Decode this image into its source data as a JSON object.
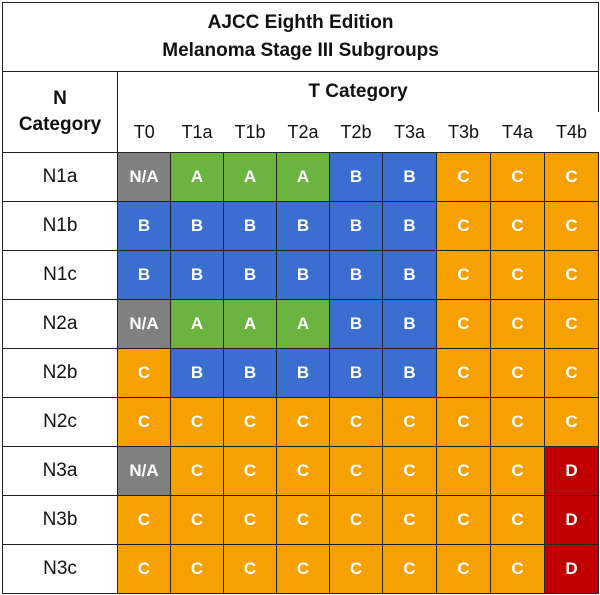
{
  "title": {
    "line1": "AJCC Eighth Edition",
    "line2": "Melanoma Stage III Subgroups"
  },
  "headers": {
    "n_category_line1": "N",
    "n_category_line2": "Category",
    "t_category": "T Category"
  },
  "t_columns": [
    "T0",
    "T1a",
    "T1b",
    "T2a",
    "T2b",
    "T3a",
    "T3b",
    "T4a",
    "T4b"
  ],
  "rows": [
    {
      "n": "N1a",
      "cells": [
        "N/A",
        "A",
        "A",
        "A",
        "B",
        "B",
        "C",
        "C",
        "C"
      ]
    },
    {
      "n": "N1b",
      "cells": [
        "B",
        "B",
        "B",
        "B",
        "B",
        "B",
        "C",
        "C",
        "C"
      ]
    },
    {
      "n": "N1c",
      "cells": [
        "B",
        "B",
        "B",
        "B",
        "B",
        "B",
        "C",
        "C",
        "C"
      ]
    },
    {
      "n": "N2a",
      "cells": [
        "N/A",
        "A",
        "A",
        "A",
        "B",
        "B",
        "C",
        "C",
        "C"
      ]
    },
    {
      "n": "N2b",
      "cells": [
        "C",
        "B",
        "B",
        "B",
        "B",
        "B",
        "C",
        "C",
        "C"
      ]
    },
    {
      "n": "N2c",
      "cells": [
        "C",
        "C",
        "C",
        "C",
        "C",
        "C",
        "C",
        "C",
        "C"
      ]
    },
    {
      "n": "N3a",
      "cells": [
        "N/A",
        "C",
        "C",
        "C",
        "C",
        "C",
        "C",
        "C",
        "D"
      ]
    },
    {
      "n": "N3b",
      "cells": [
        "C",
        "C",
        "C",
        "C",
        "C",
        "C",
        "C",
        "C",
        "D"
      ]
    },
    {
      "n": "N3c",
      "cells": [
        "C",
        "C",
        "C",
        "C",
        "C",
        "C",
        "C",
        "C",
        "D"
      ]
    }
  ],
  "colors": {
    "N/A": "#808080",
    "A": "#6ab43f",
    "B": "#3a6fd0",
    "C": "#f7a100",
    "D": "#c00000"
  }
}
